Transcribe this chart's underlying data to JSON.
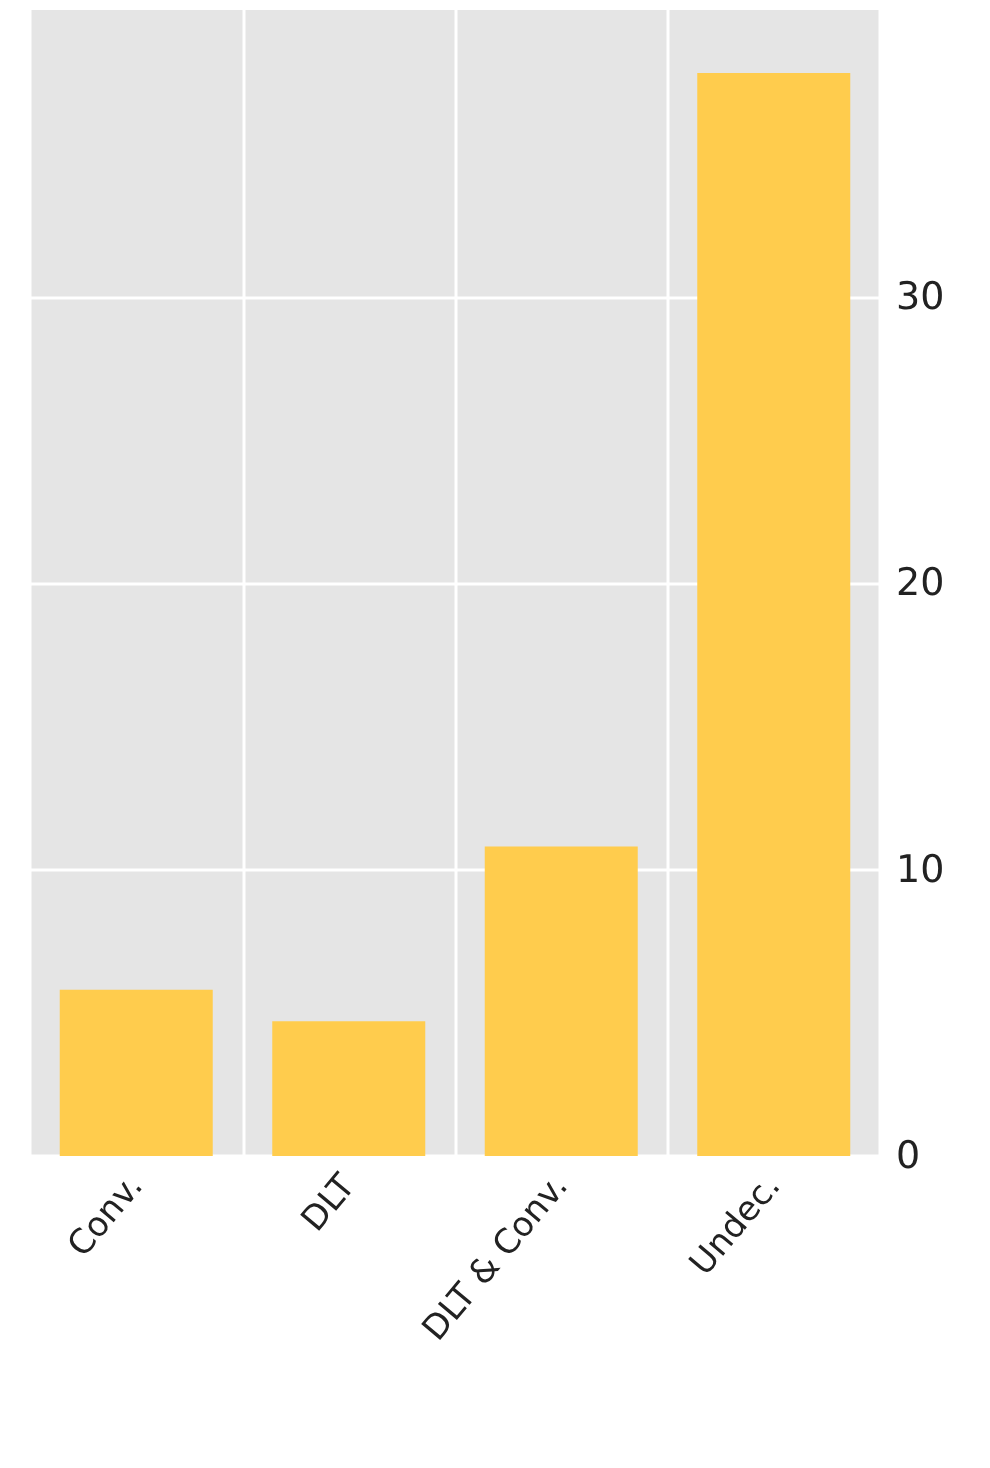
{
  "chart_data": {
    "type": "bar",
    "categories": [
      "Conv.",
      "DLT",
      "DLT & Conv.",
      "Undec."
    ],
    "values": [
      5.8,
      4.7,
      10.8,
      37.8
    ],
    "color": "#ffcc4d",
    "ylim": [
      0,
      40
    ],
    "yticks": [
      0,
      10,
      20,
      30
    ],
    "grid": true
  }
}
